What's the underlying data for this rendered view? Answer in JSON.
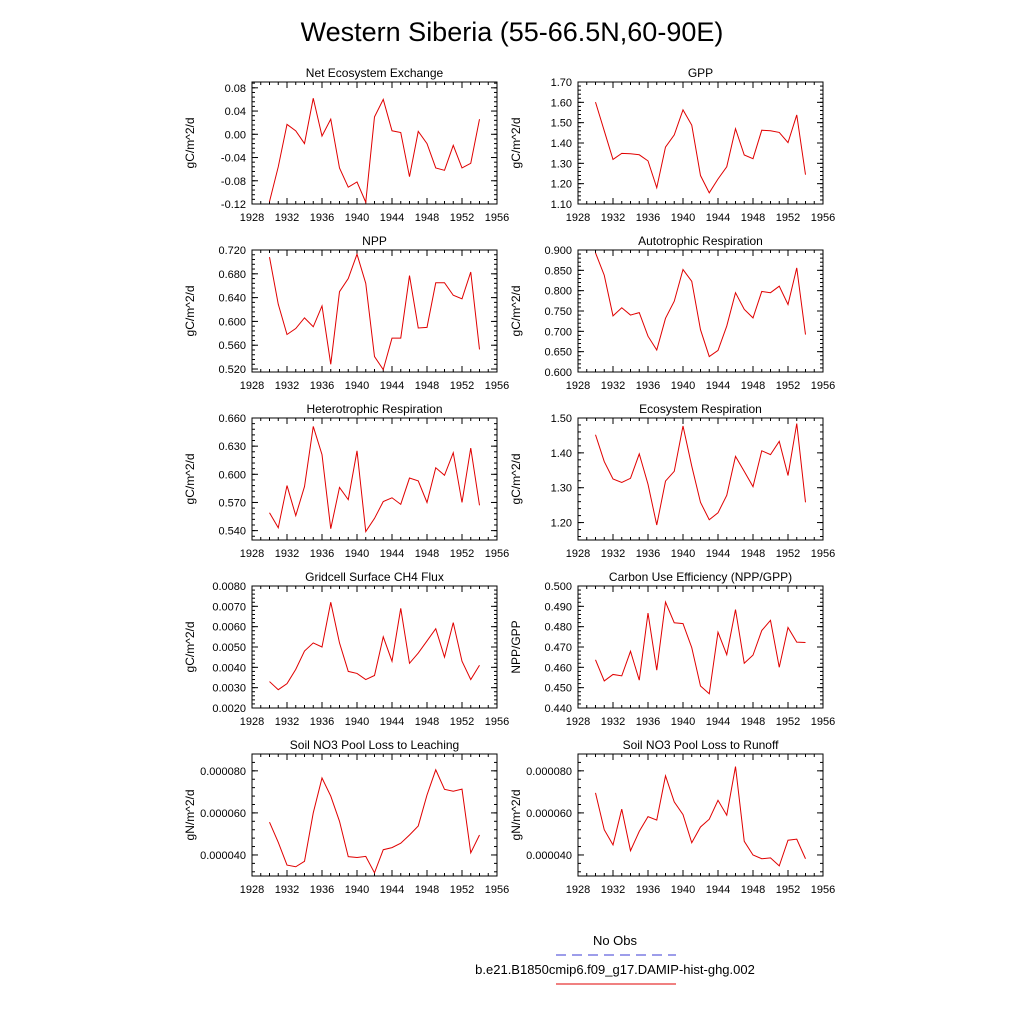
{
  "figure": {
    "title": "Western Siberia (55-66.5N,60-90E)"
  },
  "legend": {
    "obs_label": "No Obs",
    "obs_color": "#3b3bd6",
    "model_label": "b.e21.B1850cmip6.f09_g17.DAMIP-hist-ghg.002",
    "model_color": "#e00000"
  },
  "chart_data": [
    {
      "type": "line",
      "title": "Net Ecosystem Exchange",
      "ylabel": "gC/m^2/d",
      "xlim": [
        1928,
        1956
      ],
      "xticks": [
        "1928",
        "1932",
        "1936",
        "1940",
        "1944",
        "1948",
        "1952",
        "1956"
      ],
      "ylim": [
        -0.12,
        0.09
      ],
      "yticks": [
        "-0.12",
        "-0.08",
        "-0.04",
        "0.00",
        "0.04",
        "0.08"
      ],
      "series": [
        {
          "x": [
            1930,
            1931,
            1932,
            1933,
            1934,
            1935,
            1936,
            1937,
            1938,
            1939,
            1940,
            1941,
            1942,
            1943,
            1944,
            1945,
            1946,
            1947,
            1948,
            1949,
            1950,
            1951,
            1952,
            1953,
            1954
          ],
          "values": [
            -0.116,
            -0.056,
            0.017,
            0.006,
            -0.016,
            0.062,
            -0.003,
            0.026,
            -0.058,
            -0.091,
            -0.082,
            -0.117,
            0.03,
            0.06,
            0.006,
            0.003,
            -0.073,
            0.005,
            -0.016,
            -0.058,
            -0.062,
            -0.019,
            -0.058,
            -0.05,
            0.026
          ]
        }
      ]
    },
    {
      "type": "line",
      "title": "GPP",
      "ylabel": "gC/m^2/d",
      "xlim": [
        1928,
        1956
      ],
      "xticks": [
        "1928",
        "1932",
        "1936",
        "1940",
        "1944",
        "1948",
        "1952",
        "1956"
      ],
      "ylim": [
        1.1,
        1.7
      ],
      "yticks": [
        "1.10",
        "1.20",
        "1.30",
        "1.40",
        "1.50",
        "1.60",
        "1.70"
      ],
      "series": [
        {
          "x": [
            1930,
            1931,
            1932,
            1933,
            1934,
            1935,
            1936,
            1937,
            1938,
            1939,
            1940,
            1941,
            1942,
            1943,
            1944,
            1945,
            1946,
            1947,
            1948,
            1949,
            1950,
            1951,
            1952,
            1953,
            1954
          ],
          "values": [
            1.601,
            1.46,
            1.319,
            1.349,
            1.347,
            1.342,
            1.312,
            1.18,
            1.38,
            1.44,
            1.563,
            1.488,
            1.24,
            1.155,
            1.223,
            1.283,
            1.47,
            1.341,
            1.323,
            1.463,
            1.46,
            1.452,
            1.402,
            1.538,
            1.244
          ]
        }
      ]
    },
    {
      "type": "line",
      "title": "NPP",
      "ylabel": "gC/m^2/d",
      "xlim": [
        1928,
        1956
      ],
      "xticks": [
        "1928",
        "1932",
        "1936",
        "1940",
        "1944",
        "1948",
        "1952",
        "1956"
      ],
      "ylim": [
        0.515,
        0.72
      ],
      "yticks": [
        "0.520",
        "0.560",
        "0.600",
        "0.640",
        "0.680",
        "0.720"
      ],
      "series": [
        {
          "x": [
            1930,
            1931,
            1932,
            1933,
            1934,
            1935,
            1936,
            1937,
            1938,
            1939,
            1940,
            1941,
            1942,
            1943,
            1944,
            1945,
            1946,
            1947,
            1948,
            1949,
            1950,
            1951,
            1952,
            1953,
            1954
          ],
          "values": [
            0.708,
            0.629,
            0.578,
            0.588,
            0.606,
            0.591,
            0.626,
            0.528,
            0.65,
            0.672,
            0.713,
            0.664,
            0.541,
            0.519,
            0.572,
            0.572,
            0.677,
            0.589,
            0.59,
            0.665,
            0.665,
            0.644,
            0.638,
            0.683,
            0.553
          ]
        }
      ]
    },
    {
      "type": "line",
      "title": "Autotrophic Respiration",
      "ylabel": "gC/m^2/d",
      "xlim": [
        1928,
        1956
      ],
      "xticks": [
        "1928",
        "1932",
        "1936",
        "1940",
        "1944",
        "1948",
        "1952",
        "1956"
      ],
      "ylim": [
        0.6,
        0.9
      ],
      "yticks": [
        "0.600",
        "0.650",
        "0.700",
        "0.750",
        "0.800",
        "0.850",
        "0.900"
      ],
      "series": [
        {
          "x": [
            1930,
            1931,
            1932,
            1933,
            1934,
            1935,
            1936,
            1937,
            1938,
            1939,
            1940,
            1941,
            1942,
            1943,
            1944,
            1945,
            1946,
            1947,
            1948,
            1949,
            1950,
            1951,
            1952,
            1953,
            1954
          ],
          "values": [
            0.893,
            0.838,
            0.738,
            0.758,
            0.74,
            0.746,
            0.688,
            0.654,
            0.732,
            0.774,
            0.852,
            0.823,
            0.704,
            0.638,
            0.653,
            0.713,
            0.795,
            0.754,
            0.733,
            0.798,
            0.795,
            0.811,
            0.766,
            0.856,
            0.692
          ]
        }
      ]
    },
    {
      "type": "line",
      "title": "Heterotrophic Respiration",
      "ylabel": "gC/m^2/d",
      "xlim": [
        1928,
        1956
      ],
      "xticks": [
        "1928",
        "1932",
        "1936",
        "1940",
        "1944",
        "1948",
        "1952",
        "1956"
      ],
      "ylim": [
        0.53,
        0.66
      ],
      "yticks": [
        "0.540",
        "0.570",
        "0.600",
        "0.630",
        "0.660"
      ],
      "series": [
        {
          "x": [
            1930,
            1931,
            1932,
            1933,
            1934,
            1935,
            1936,
            1937,
            1938,
            1939,
            1940,
            1941,
            1942,
            1943,
            1944,
            1945,
            1946,
            1947,
            1948,
            1949,
            1950,
            1951,
            1952,
            1953,
            1954
          ],
          "values": [
            0.559,
            0.543,
            0.588,
            0.556,
            0.587,
            0.651,
            0.621,
            0.542,
            0.586,
            0.573,
            0.625,
            0.539,
            0.553,
            0.571,
            0.575,
            0.568,
            0.596,
            0.593,
            0.57,
            0.607,
            0.599,
            0.623,
            0.57,
            0.628,
            0.567
          ]
        }
      ]
    },
    {
      "type": "line",
      "title": "Ecosystem Respiration",
      "ylabel": "gC/m^2/d",
      "xlim": [
        1928,
        1956
      ],
      "xticks": [
        "1928",
        "1932",
        "1936",
        "1940",
        "1944",
        "1948",
        "1952",
        "1956"
      ],
      "ylim": [
        1.15,
        1.5
      ],
      "yticks": [
        "1.20",
        "1.30",
        "1.40",
        "1.50"
      ],
      "series": [
        {
          "x": [
            1930,
            1931,
            1932,
            1933,
            1934,
            1935,
            1936,
            1937,
            1938,
            1939,
            1940,
            1941,
            1942,
            1943,
            1944,
            1945,
            1946,
            1947,
            1948,
            1949,
            1950,
            1951,
            1952,
            1953,
            1954
          ],
          "values": [
            1.452,
            1.375,
            1.325,
            1.315,
            1.327,
            1.397,
            1.31,
            1.193,
            1.319,
            1.347,
            1.477,
            1.362,
            1.258,
            1.208,
            1.228,
            1.278,
            1.39,
            1.347,
            1.303,
            1.406,
            1.395,
            1.433,
            1.335,
            1.484,
            1.258
          ]
        }
      ]
    },
    {
      "type": "line",
      "title": "Gridcell Surface CH4 Flux",
      "ylabel": "gC/m^2/d",
      "xlim": [
        1928,
        1956
      ],
      "xticks": [
        "1928",
        "1932",
        "1936",
        "1940",
        "1944",
        "1948",
        "1952",
        "1956"
      ],
      "ylim": [
        0.002,
        0.008
      ],
      "yticks": [
        "0.0020",
        "0.0030",
        "0.0040",
        "0.0050",
        "0.0060",
        "0.0070",
        "0.0080"
      ],
      "series": [
        {
          "x": [
            1930,
            1931,
            1932,
            1933,
            1934,
            1935,
            1936,
            1937,
            1938,
            1939,
            1940,
            1941,
            1942,
            1943,
            1944,
            1945,
            1946,
            1947,
            1948,
            1949,
            1950,
            1951,
            1952,
            1953,
            1954
          ],
          "values": [
            0.0033,
            0.0029,
            0.0032,
            0.0039,
            0.0048,
            0.0052,
            0.005,
            0.0072,
            0.0052,
            0.0038,
            0.0037,
            0.0034,
            0.0036,
            0.0055,
            0.0043,
            0.0069,
            0.0042,
            0.0047,
            0.0053,
            0.0059,
            0.0045,
            0.0062,
            0.0043,
            0.0034,
            0.0041
          ]
        }
      ]
    },
    {
      "type": "line",
      "title": "Carbon Use Efficiency (NPP/GPP)",
      "ylabel": "NPP/GPP",
      "xlim": [
        1928,
        1956
      ],
      "xticks": [
        "1928",
        "1932",
        "1936",
        "1940",
        "1944",
        "1948",
        "1952",
        "1956"
      ],
      "ylim": [
        0.44,
        0.5
      ],
      "yticks": [
        "0.440",
        "0.450",
        "0.460",
        "0.470",
        "0.480",
        "0.490",
        "0.500"
      ],
      "series": [
        {
          "x": [
            1930,
            1931,
            1932,
            1933,
            1934,
            1935,
            1936,
            1937,
            1938,
            1939,
            1940,
            1941,
            1942,
            1943,
            1944,
            1945,
            1946,
            1947,
            1948,
            1949,
            1950,
            1951,
            1952,
            1953,
            1954
          ],
          "values": [
            0.4637,
            0.4533,
            0.4565,
            0.4558,
            0.4679,
            0.4537,
            0.4867,
            0.4586,
            0.4921,
            0.4819,
            0.4815,
            0.4697,
            0.4508,
            0.447,
            0.4773,
            0.4662,
            0.4884,
            0.462,
            0.466,
            0.4781,
            0.4831,
            0.46,
            0.4796,
            0.4724,
            0.4722
          ]
        }
      ]
    },
    {
      "type": "line",
      "title": "Soil NO3 Pool Loss to Leaching",
      "ylabel": "gN/m^2/d",
      "xlim": [
        1928,
        1956
      ],
      "xticks": [
        "1928",
        "1932",
        "1936",
        "1940",
        "1944",
        "1948",
        "1952",
        "1956"
      ],
      "ylim": [
        3e-05,
        8.8e-05
      ],
      "yticks": [
        "0.000040",
        "0.000060",
        "0.000080"
      ],
      "series": [
        {
          "x": [
            1930,
            1931,
            1932,
            1933,
            1934,
            1935,
            1936,
            1937,
            1938,
            1939,
            1940,
            1941,
            1942,
            1943,
            1944,
            1945,
            1946,
            1947,
            1948,
            1949,
            1950,
            1951,
            1952,
            1953,
            1954
          ],
          "values": [
            5.56e-05,
            4.6e-05,
            3.52e-05,
            3.44e-05,
            3.7e-05,
            6e-05,
            7.66e-05,
            6.8e-05,
            5.6e-05,
            3.92e-05,
            3.88e-05,
            3.93e-05,
            3.15e-05,
            4.25e-05,
            4.35e-05,
            4.56e-05,
            4.95e-05,
            5.38e-05,
            6.85e-05,
            8.05e-05,
            7.12e-05,
            7.03e-05,
            7.13e-05,
            4.1e-05,
            4.95e-05
          ]
        }
      ]
    },
    {
      "type": "line",
      "title": "Soil NO3 Pool Loss to Runoff",
      "ylabel": "gN/m^2/d",
      "xlim": [
        1928,
        1956
      ],
      "xticks": [
        "1928",
        "1932",
        "1936",
        "1940",
        "1944",
        "1948",
        "1952",
        "1956"
      ],
      "ylim": [
        3e-05,
        8.8e-05
      ],
      "yticks": [
        "0.000040",
        "0.000060",
        "0.000080"
      ],
      "series": [
        {
          "x": [
            1930,
            1931,
            1932,
            1933,
            1934,
            1935,
            1936,
            1937,
            1938,
            1939,
            1940,
            1941,
            1942,
            1943,
            1944,
            1945,
            1946,
            1947,
            1948,
            1949,
            1950,
            1951,
            1952,
            1953,
            1954
          ],
          "values": [
            6.95e-05,
            5.2e-05,
            4.48e-05,
            6.18e-05,
            4.2e-05,
            5.12e-05,
            5.82e-05,
            5.66e-05,
            7.76e-05,
            6.52e-05,
            5.92e-05,
            4.58e-05,
            5.33e-05,
            5.7e-05,
            6.6e-05,
            5.89e-05,
            8.2e-05,
            4.65e-05,
            4e-05,
            3.82e-05,
            3.86e-05,
            3.48e-05,
            4.7e-05,
            4.75e-05,
            3.82e-05
          ]
        }
      ]
    }
  ]
}
